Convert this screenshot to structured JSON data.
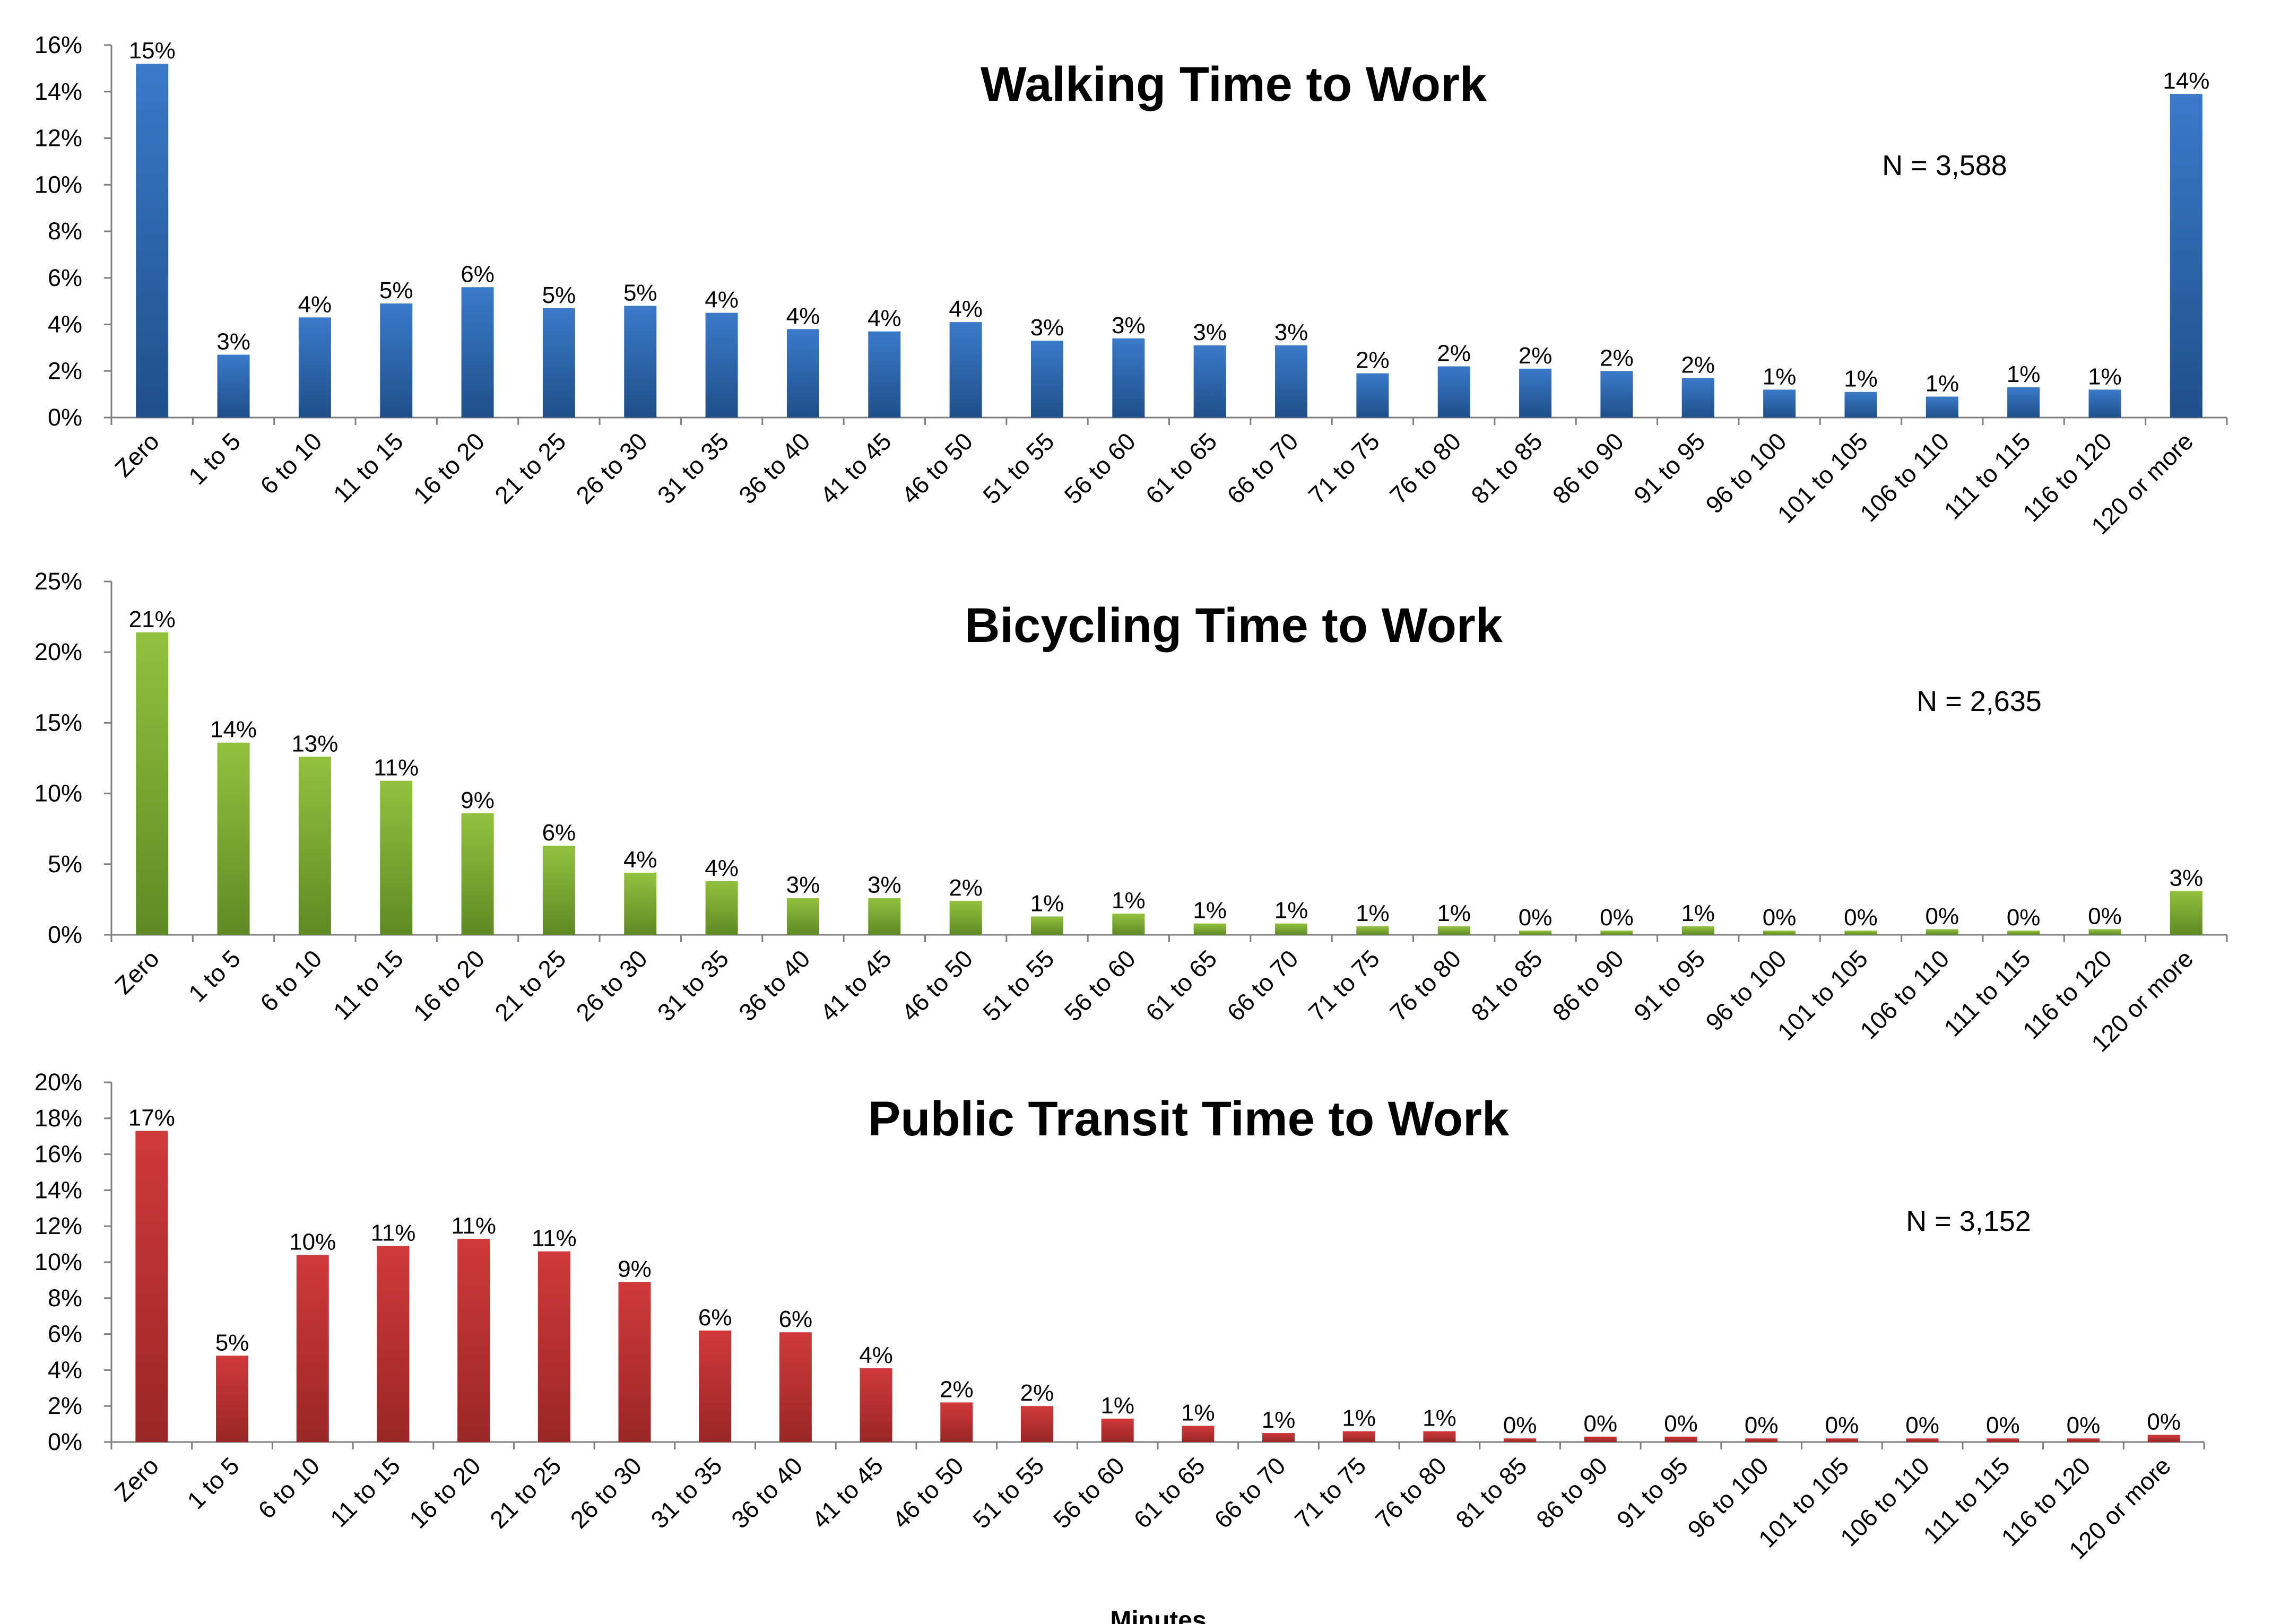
{
  "categories": [
    "Zero",
    "1 to 5",
    "6 to 10",
    "11 to 15",
    "16 to 20",
    "21 to 25",
    "26 to 30",
    "31 to 35",
    "36 to 40",
    "41 to 45",
    "46 to 50",
    "51 to 55",
    "56 to 60",
    "61 to 65",
    "66 to 70",
    "71 to 75",
    "76 to 80",
    "81 to 85",
    "86 to 90",
    "91 to 95",
    "96 to 100",
    "101 to 105",
    "106 to 110",
    "111 to 115",
    "116 to 120",
    "120 or more"
  ],
  "chart_data": [
    {
      "type": "bar",
      "title": "Walking Time to Work",
      "note": "N = 3,588",
      "xlabel": "",
      "ylabel": "",
      "ylim": [
        0,
        16
      ],
      "yticks": [
        0,
        2,
        4,
        6,
        8,
        10,
        12,
        14,
        16
      ],
      "ytick_labels": [
        "0%",
        "2%",
        "4%",
        "6%",
        "8%",
        "10%",
        "12%",
        "14%",
        "16%"
      ],
      "values": [
        15.2,
        2.7,
        4.3,
        4.9,
        5.6,
        4.7,
        4.8,
        4.5,
        3.8,
        3.7,
        4.1,
        3.3,
        3.4,
        3.1,
        3.1,
        1.9,
        2.2,
        2.1,
        2.0,
        1.7,
        1.2,
        1.1,
        0.9,
        1.3,
        1.2,
        13.9
      ],
      "data_labels": [
        "15%",
        "3%",
        "4%",
        "5%",
        "6%",
        "5%",
        "5%",
        "4%",
        "4%",
        "4%",
        "4%",
        "3%",
        "3%",
        "3%",
        "3%",
        "2%",
        "2%",
        "2%",
        "2%",
        "2%",
        "1%",
        "1%",
        "1%",
        "1%",
        "1%",
        "14%"
      ],
      "color": "#3a7ac9",
      "color_dark": "#1f4f8a",
      "grid": false
    },
    {
      "type": "bar",
      "title": "Bicycling Time to Work",
      "note": "N = 2,635",
      "xlabel": "",
      "ylabel": "",
      "ylim": [
        0,
        25
      ],
      "yticks": [
        0,
        5,
        10,
        15,
        20,
        25
      ],
      "ytick_labels": [
        "0%",
        "5%",
        "10%",
        "15%",
        "20%",
        "25%"
      ],
      "values": [
        21.4,
        13.6,
        12.6,
        10.9,
        8.6,
        6.3,
        4.4,
        3.8,
        2.6,
        2.6,
        2.4,
        1.3,
        1.5,
        0.8,
        0.8,
        0.6,
        0.6,
        0.3,
        0.3,
        0.6,
        0.3,
        0.3,
        0.4,
        0.3,
        0.4,
        3.1
      ],
      "data_labels": [
        "21%",
        "14%",
        "13%",
        "11%",
        "9%",
        "6%",
        "4%",
        "4%",
        "3%",
        "3%",
        "2%",
        "1%",
        "1%",
        "1%",
        "1%",
        "1%",
        "1%",
        "0%",
        "0%",
        "1%",
        "0%",
        "0%",
        "0%",
        "0%",
        "0%",
        "3%"
      ],
      "color": "#92c13e",
      "color_dark": "#5e8a24",
      "grid": false
    },
    {
      "type": "bar",
      "title": "Public Transit Time to Work",
      "note": "N = 3,152",
      "xlabel": "Minutes",
      "ylabel": "",
      "ylim": [
        0,
        20
      ],
      "yticks": [
        0,
        2,
        4,
        6,
        8,
        10,
        12,
        14,
        16,
        18,
        20
      ],
      "ytick_labels": [
        "0%",
        "2%",
        "4%",
        "6%",
        "8%",
        "10%",
        "12%",
        "14%",
        "16%",
        "18%",
        "20%"
      ],
      "values": [
        17.3,
        4.8,
        10.4,
        10.9,
        11.3,
        10.6,
        8.9,
        6.2,
        6.1,
        4.1,
        2.2,
        2.0,
        1.3,
        0.9,
        0.5,
        0.6,
        0.6,
        0.2,
        0.3,
        0.3,
        0.2,
        0.2,
        0.2,
        0.2,
        0.2,
        0.4
      ],
      "data_labels": [
        "17%",
        "5%",
        "10%",
        "11%",
        "11%",
        "11%",
        "9%",
        "6%",
        "6%",
        "4%",
        "2%",
        "2%",
        "1%",
        "1%",
        "1%",
        "1%",
        "1%",
        "0%",
        "0%",
        "0%",
        "0%",
        "0%",
        "0%",
        "0%",
        "0%",
        "0%"
      ],
      "color": "#d0393a",
      "color_dark": "#9a2626",
      "grid": false
    }
  ]
}
